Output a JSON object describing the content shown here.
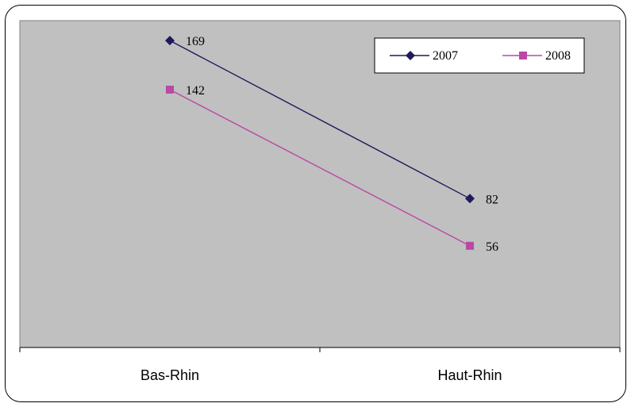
{
  "chart_data": {
    "type": "line",
    "categories": [
      "Bas-Rhin",
      "Haut-Rhin"
    ],
    "series": [
      {
        "name": "2007",
        "values": [
          169,
          82
        ],
        "color": "#1f1a5c",
        "marker": "diamond"
      },
      {
        "name": "2008",
        "values": [
          142,
          56
        ],
        "color": "#b84aa6",
        "marker": "square"
      }
    ],
    "data_labels": [
      [
        "169",
        "82"
      ],
      [
        "142",
        "56"
      ]
    ],
    "ylim": [
      0,
      180
    ],
    "y_axis_visible": false,
    "gridlines": false,
    "plot_background": "#c0c0c0",
    "legend_position": "top-right",
    "title": "",
    "xlabel": "",
    "ylabel": ""
  }
}
